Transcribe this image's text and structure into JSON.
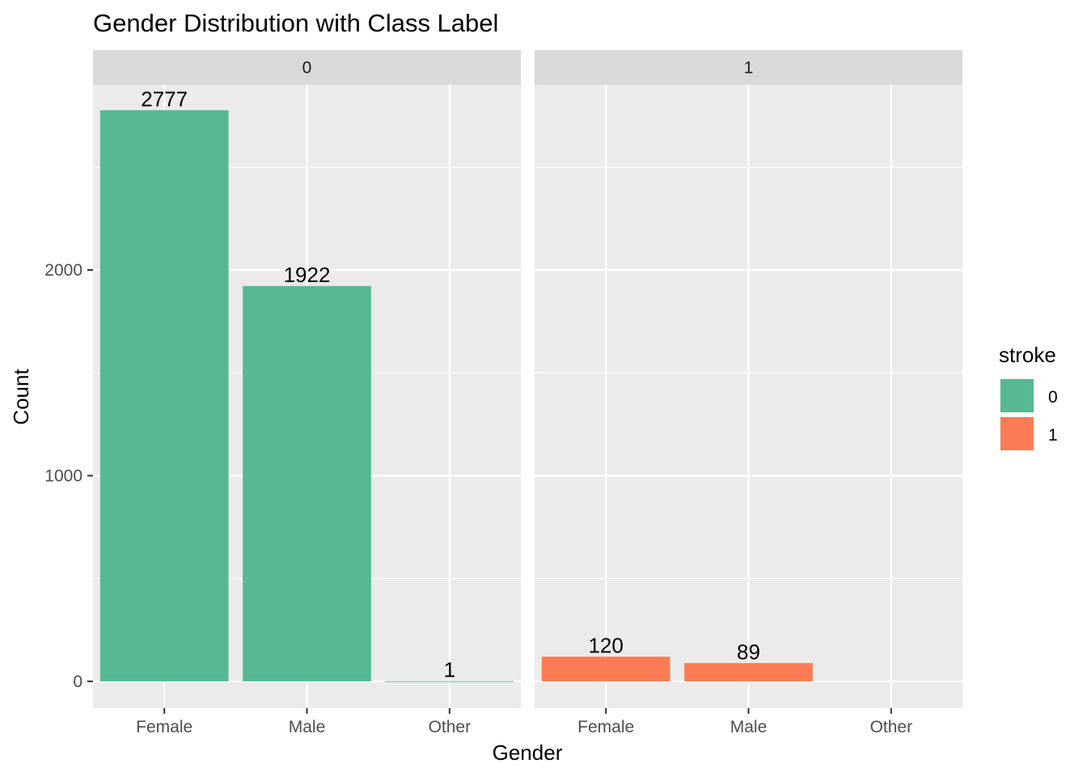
{
  "chart_data": {
    "type": "bar",
    "title": "Gender Distribution with Class Label",
    "xlabel": "Gender",
    "ylabel": "Count",
    "facet_variable": "stroke",
    "categories": [
      "Female",
      "Male",
      "Other"
    ],
    "ylim": [
      -130,
      2900
    ],
    "yticks": [
      0,
      1000,
      2000
    ],
    "grid": true,
    "legend": {
      "title": "stroke",
      "placement": "right",
      "entries": [
        {
          "label": "0",
          "color": "#56B993"
        },
        {
          "label": "1",
          "color": "#FA7C54"
        }
      ]
    },
    "facets": [
      {
        "label": "0",
        "color": "#56B993",
        "values": [
          2777,
          1922,
          1
        ]
      },
      {
        "label": "1",
        "color": "#FA7C54",
        "values": [
          120,
          89,
          0
        ]
      }
    ],
    "data_labels": [
      [
        "2777",
        "1922",
        "1"
      ],
      [
        "120",
        "89",
        ""
      ]
    ]
  }
}
